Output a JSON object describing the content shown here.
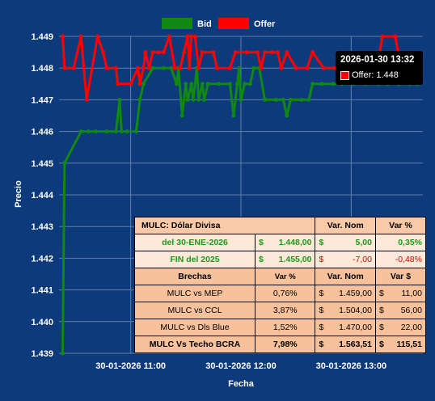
{
  "chart_data": {
    "type": "line",
    "xlabel": "Fecha",
    "ylabel": "Precio",
    "ylim": [
      1.439,
      1.449
    ],
    "yticks": [
      "1.439",
      "1.440",
      "1.441",
      "1.442",
      "1.443",
      "1.444",
      "1.445",
      "1.446",
      "1.447",
      "1.448",
      "1.449"
    ],
    "xlim": [
      "2026-01-30 10:21",
      "2026-01-30 13:39"
    ],
    "xticks": [
      {
        "t": "2026-01-30 11:00",
        "label": "30-01-2026 11:00"
      },
      {
        "t": "2026-01-30 12:00",
        "label": "30-01-2026 12:00"
      },
      {
        "t": "2026-01-30 13:00",
        "label": "30-01-2026 13:00"
      }
    ],
    "grid": true,
    "legend": "top-center",
    "series": [
      {
        "name": "Bid",
        "color": "#118811",
        "points": [
          [
            "2026-01-30 10:23",
            1.439
          ],
          [
            "2026-01-30 10:24",
            1.445
          ],
          [
            "2026-01-30 10:33",
            1.446
          ],
          [
            "2026-01-30 10:37",
            1.446
          ],
          [
            "2026-01-30 10:41",
            1.446
          ],
          [
            "2026-01-30 10:47",
            1.446
          ],
          [
            "2026-01-30 10:52",
            1.446
          ],
          [
            "2026-01-30 10:54",
            1.447
          ],
          [
            "2026-01-30 10:55",
            1.446
          ],
          [
            "2026-01-30 10:58",
            1.446
          ],
          [
            "2026-01-30 11:03",
            1.446
          ],
          [
            "2026-01-30 11:05",
            1.447
          ],
          [
            "2026-01-30 11:07",
            1.4475
          ],
          [
            "2026-01-30 11:12",
            1.448
          ],
          [
            "2026-01-30 11:18",
            1.448
          ],
          [
            "2026-01-30 11:22",
            1.448
          ],
          [
            "2026-01-30 11:25",
            1.4475
          ],
          [
            "2026-01-30 11:26",
            1.448
          ],
          [
            "2026-01-30 11:28",
            1.4465
          ],
          [
            "2026-01-30 11:30",
            1.4475
          ],
          [
            "2026-01-30 11:31",
            1.447
          ],
          [
            "2026-01-30 11:33",
            1.4475
          ],
          [
            "2026-01-30 11:34",
            1.447
          ],
          [
            "2026-01-30 11:36",
            1.448
          ],
          [
            "2026-01-30 11:37",
            1.447
          ],
          [
            "2026-01-30 11:39",
            1.4475
          ],
          [
            "2026-01-30 11:40",
            1.447
          ],
          [
            "2026-01-30 11:42",
            1.4475
          ],
          [
            "2026-01-30 11:48",
            1.4475
          ],
          [
            "2026-01-30 11:54",
            1.4475
          ],
          [
            "2026-01-30 11:56",
            1.4465
          ],
          [
            "2026-01-30 11:58",
            1.4475
          ],
          [
            "2026-01-30 11:59",
            1.448
          ],
          [
            "2026-01-30 12:00",
            1.447
          ],
          [
            "2026-01-30 12:02",
            1.4475
          ],
          [
            "2026-01-30 12:05",
            1.4475
          ],
          [
            "2026-01-30 12:07",
            1.448
          ],
          [
            "2026-01-30 12:10",
            1.448
          ],
          [
            "2026-01-30 12:13",
            1.447
          ],
          [
            "2026-01-30 12:19",
            1.447
          ],
          [
            "2026-01-30 12:23",
            1.447
          ],
          [
            "2026-01-30 12:25",
            1.4465
          ],
          [
            "2026-01-30 12:27",
            1.447
          ],
          [
            "2026-01-30 12:33",
            1.447
          ],
          [
            "2026-01-30 12:37",
            1.447
          ],
          [
            "2026-01-30 12:39",
            1.4475
          ],
          [
            "2026-01-30 12:44",
            1.4475
          ],
          [
            "2026-01-30 12:50",
            1.4475
          ],
          [
            "2026-01-30 12:55",
            1.4475
          ],
          [
            "2026-01-30 13:01",
            1.4475
          ],
          [
            "2026-01-30 13:08",
            1.4475
          ],
          [
            "2026-01-30 13:15",
            1.4475
          ],
          [
            "2026-01-30 13:20",
            1.4475
          ],
          [
            "2026-01-30 13:26",
            1.4475
          ],
          [
            "2026-01-30 13:32",
            1.4475
          ],
          [
            "2026-01-30 13:36",
            1.4475
          ]
        ]
      },
      {
        "name": "Offer",
        "color": "#ff0000",
        "points": [
          [
            "2026-01-30 10:23",
            1.449
          ],
          [
            "2026-01-30 10:24",
            1.448
          ],
          [
            "2026-01-30 10:29",
            1.448
          ],
          [
            "2026-01-30 10:33",
            1.449
          ],
          [
            "2026-01-30 10:36",
            1.447
          ],
          [
            "2026-01-30 10:42",
            1.449
          ],
          [
            "2026-01-30 10:45",
            1.4485
          ],
          [
            "2026-01-30 10:47",
            1.448
          ],
          [
            "2026-01-30 10:52",
            1.448
          ],
          [
            "2026-01-30 10:53",
            1.4475
          ],
          [
            "2026-01-30 11:00",
            1.4475
          ],
          [
            "2026-01-30 11:04",
            1.448
          ],
          [
            "2026-01-30 11:05",
            1.4475
          ],
          [
            "2026-01-30 11:07",
            1.448
          ],
          [
            "2026-01-30 11:08",
            1.4485
          ],
          [
            "2026-01-30 11:10",
            1.448
          ],
          [
            "2026-01-30 11:12",
            1.4485
          ],
          [
            "2026-01-30 11:15",
            1.4485
          ],
          [
            "2026-01-30 11:18",
            1.4485
          ],
          [
            "2026-01-30 11:21",
            1.449
          ],
          [
            "2026-01-30 11:24",
            1.448
          ],
          [
            "2026-01-30 11:27",
            1.448
          ],
          [
            "2026-01-30 11:29",
            1.4485
          ],
          [
            "2026-01-30 11:31",
            1.449
          ],
          [
            "2026-01-30 11:32",
            1.448
          ],
          [
            "2026-01-30 11:33",
            1.449
          ],
          [
            "2026-01-30 11:35",
            1.449
          ],
          [
            "2026-01-30 11:37",
            1.448
          ],
          [
            "2026-01-30 11:39",
            1.4485
          ],
          [
            "2026-01-30 11:45",
            1.4485
          ],
          [
            "2026-01-30 11:47",
            1.448
          ],
          [
            "2026-01-30 11:54",
            1.448
          ],
          [
            "2026-01-30 11:57",
            1.4485
          ],
          [
            "2026-01-30 12:03",
            1.4485
          ],
          [
            "2026-01-30 12:09",
            1.4485
          ],
          [
            "2026-01-30 12:11",
            1.448
          ],
          [
            "2026-01-30 12:13",
            1.4485
          ],
          [
            "2026-01-30 12:17",
            1.4485
          ],
          [
            "2026-01-30 12:20",
            1.4485
          ],
          [
            "2026-01-30 12:22",
            1.448
          ],
          [
            "2026-01-30 12:25",
            1.4485
          ],
          [
            "2026-01-30 12:30",
            1.448
          ],
          [
            "2026-01-30 12:36",
            1.448
          ],
          [
            "2026-01-30 12:39",
            1.4485
          ],
          [
            "2026-01-30 12:45",
            1.448
          ],
          [
            "2026-01-30 12:51",
            1.448
          ],
          [
            "2026-01-30 12:56",
            1.448
          ],
          [
            "2026-01-30 13:02",
            1.448
          ],
          [
            "2026-01-30 13:08",
            1.448
          ],
          [
            "2026-01-30 13:14",
            1.448
          ],
          [
            "2026-01-30 13:17",
            1.449
          ],
          [
            "2026-01-30 13:24",
            1.449
          ],
          [
            "2026-01-30 13:27",
            1.448
          ],
          [
            "2026-01-30 13:31",
            1.448
          ],
          [
            "2026-01-30 13:32",
            1.448
          ],
          [
            "2026-01-30 13:36",
            1.448
          ]
        ]
      }
    ],
    "tooltip": {
      "time": "2026-01-30 13:32",
      "series": "Offer",
      "label": "Offer:",
      "value": "1.448"
    }
  },
  "table": {
    "header": {
      "title": "MULC: Dólar Divisa",
      "col_var_nom": "Var. Nom",
      "col_var_pct": "Var %"
    },
    "rows_top": [
      {
        "label": "del 30-ENE-2026",
        "cur": "$",
        "value": "1.448,00",
        "var_cur": "$",
        "var_nom": "5,00",
        "var_pct": "0,35%",
        "tone": "green"
      },
      {
        "label": "FIN del 2025",
        "cur": "$",
        "value": "1.455,00",
        "var_cur": "$",
        "var_nom": "-7,00",
        "var_pct": "-0,48%",
        "tone": "red"
      }
    ],
    "brechas_header": {
      "title": "Brechas",
      "col_var_pct": "Var %",
      "col_var_nom": "Var. Nom",
      "col_var_usd": "Var $"
    },
    "brechas": [
      {
        "label": "MULC vs MEP",
        "var_pct": "0,76%",
        "cur": "$",
        "var_nom": "1.459,00",
        "usd_cur": "$",
        "var_usd": "11,00"
      },
      {
        "label": "MULC vs CCL",
        "var_pct": "3,87%",
        "cur": "$",
        "var_nom": "1.504,00",
        "usd_cur": "$",
        "var_usd": "56,00"
      },
      {
        "label": "MULC vs Dls Blue",
        "var_pct": "1,52%",
        "cur": "$",
        "var_nom": "1.470,00",
        "usd_cur": "$",
        "var_usd": "22,00"
      },
      {
        "label": "MULC Vs Techo BCRA",
        "var_pct": "7,98%",
        "cur": "$",
        "var_nom": "1.563,51",
        "usd_cur": "$",
        "var_usd": "115,51"
      }
    ]
  }
}
